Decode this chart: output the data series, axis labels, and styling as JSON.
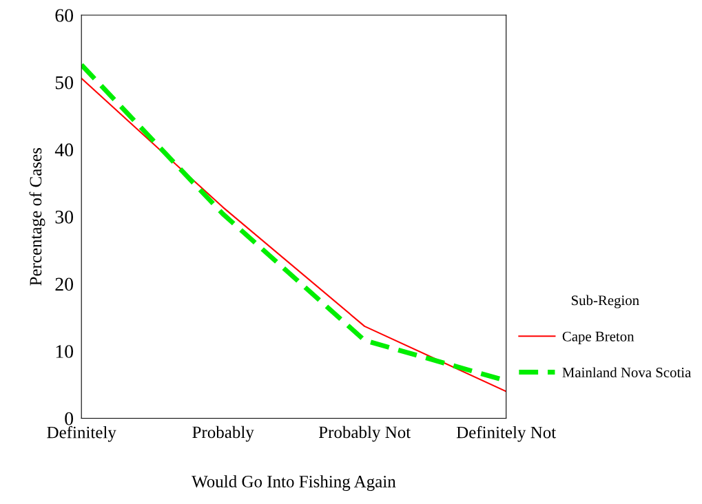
{
  "chart_data": {
    "type": "line",
    "xlabel": "Would Go Into Fishing Again",
    "ylabel": "Percentage of Cases",
    "legend_title": "Sub-Region",
    "categories": [
      "Definitely",
      "Probably",
      "Probably Not",
      "Definitely Not"
    ],
    "series": [
      {
        "name": "Cape Breton",
        "color": "#ff0000",
        "values": [
          50.6,
          31.4,
          13.7,
          4.0
        ],
        "line_style": "solid"
      },
      {
        "name": "Mainland Nova Scotia",
        "color": "#00ee00",
        "values": [
          52.6,
          30.4,
          11.6,
          5.6
        ],
        "line_style": "dashed"
      }
    ],
    "ylim": [
      0,
      60
    ],
    "yticks": [
      0,
      10,
      20,
      30,
      40,
      50,
      60
    ],
    "grid": false,
    "legend": "right",
    "marker": "none"
  }
}
